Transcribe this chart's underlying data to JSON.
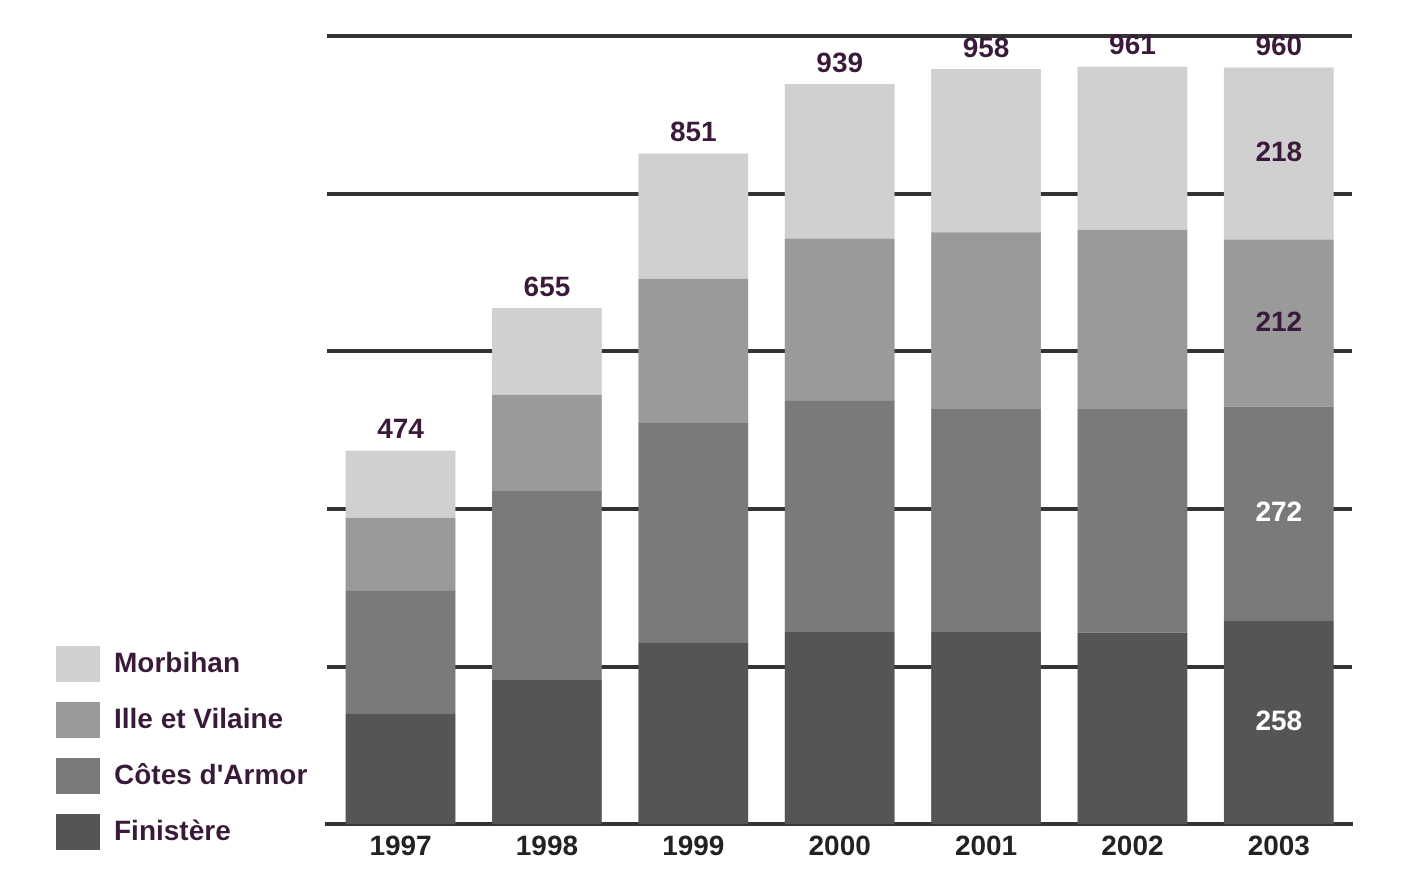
{
  "chart_data": {
    "type": "bar",
    "stacked": true,
    "categories": [
      "1997",
      "1998",
      "1999",
      "2000",
      "2001",
      "2002",
      "2003"
    ],
    "series": [
      {
        "name": "Finistère",
        "color": "#555555",
        "values": [
          141,
          184,
          230,
          244,
          244,
          243,
          258
        ],
        "value_labels": [
          null,
          null,
          null,
          null,
          null,
          null,
          "258"
        ]
      },
      {
        "name": "Côtes d'Armor",
        "color": "#7a7a7a",
        "values": [
          156,
          239,
          279,
          294,
          283,
          284,
          272
        ],
        "value_labels": [
          null,
          null,
          null,
          null,
          null,
          null,
          "272"
        ]
      },
      {
        "name": "Ille et Vilaine",
        "color": "#9a9a9a",
        "values": [
          92,
          122,
          183,
          205,
          224,
          227,
          212
        ],
        "value_labels": [
          null,
          null,
          null,
          null,
          null,
          null,
          "212"
        ]
      },
      {
        "name": "Morbihan",
        "color": "#d0d0d0",
        "values": [
          85,
          110,
          159,
          196,
          207,
          207,
          218
        ],
        "value_labels": [
          null,
          null,
          null,
          null,
          null,
          null,
          "218"
        ]
      }
    ],
    "totals": [
      "474",
      "655",
      "851",
      "939",
      "958",
      "961",
      "960"
    ],
    "ylim": [
      0,
      1000
    ],
    "yticks": [
      {
        "value": 200,
        "label": null
      },
      {
        "value": 400,
        "label": null
      },
      {
        "value": 600,
        "label": null
      },
      {
        "value": 800,
        "label": null
      },
      {
        "value": 1000,
        "label": null
      }
    ],
    "tick_labels": "x",
    "grid": "y",
    "legend": "bottom left"
  }
}
